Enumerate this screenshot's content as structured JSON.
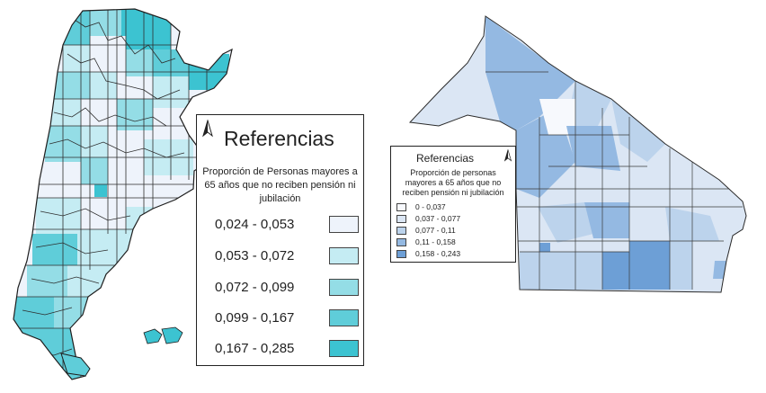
{
  "left_legend": {
    "title": "Referencias",
    "subtitle": "Proporción de Personas mayores a 65 años que no reciben pensión ni jubilación",
    "classes": [
      {
        "label": "0,024 - 0,053",
        "color": "#eef3fb"
      },
      {
        "label": "0,053 - 0,072",
        "color": "#c5ecf3"
      },
      {
        "label": "0,072 - 0,099",
        "color": "#94dde6"
      },
      {
        "label": "0,099 - 0,167",
        "color": "#5fcdd9"
      },
      {
        "label": "0,167 - 0,285",
        "color": "#3cc3d1"
      }
    ]
  },
  "right_legend": {
    "title": "Referencias",
    "subtitle": "Proporción de personas mayores a 65 años que no reciben pensión ni jubilación",
    "classes": [
      {
        "label": "0 - 0,037",
        "color": "#f7f9fd"
      },
      {
        "label": "0,037 - 0,077",
        "color": "#dbe6f4"
      },
      {
        "label": "0,077 - 0,11",
        "color": "#bcd3ec"
      },
      {
        "label": "0,11 - 0,158",
        "color": "#94b9e2"
      },
      {
        "label": "0,158 - 0,243",
        "color": "#6d9fd6"
      }
    ]
  }
}
